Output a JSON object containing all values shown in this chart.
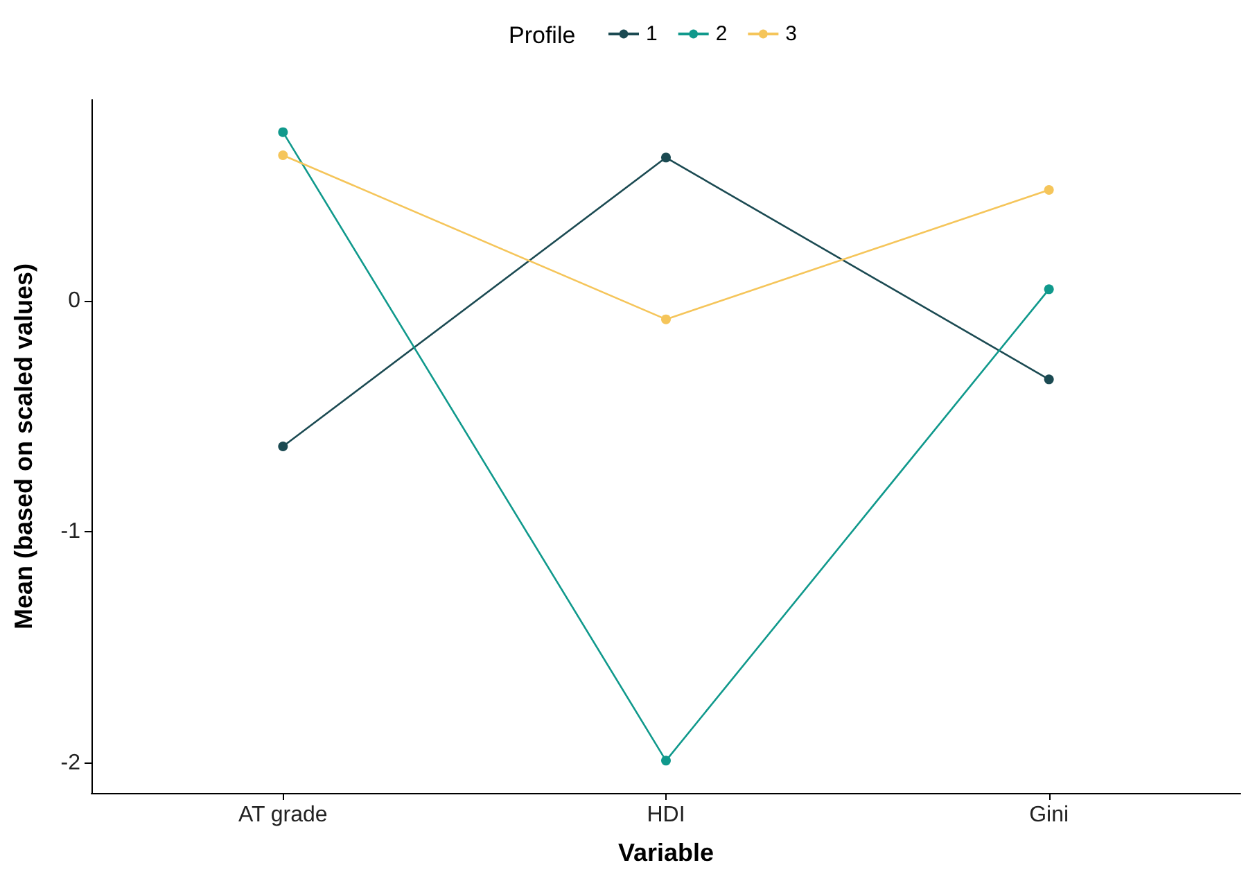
{
  "chart_data": {
    "type": "line",
    "xlabel": "Variable",
    "ylabel": "Mean (based on scaled values)",
    "legend_title": "Profile",
    "legend": "top",
    "grid": false,
    "marker": "circle",
    "line_style": "solid",
    "categories": [
      "AT grade",
      "HDI",
      "Gini"
    ],
    "ylim": [
      -2.13,
      0.87
    ],
    "yticks": [
      -2,
      -1,
      0
    ],
    "series": [
      {
        "name": "1",
        "color": "#1b4a52",
        "values": [
          -0.63,
          0.62,
          -0.34
        ]
      },
      {
        "name": "2",
        "color": "#10998c",
        "values": [
          0.73,
          -1.99,
          0.05
        ]
      },
      {
        "name": "3",
        "color": "#f5c55a",
        "values": [
          0.63,
          -0.08,
          0.48
        ]
      }
    ]
  }
}
